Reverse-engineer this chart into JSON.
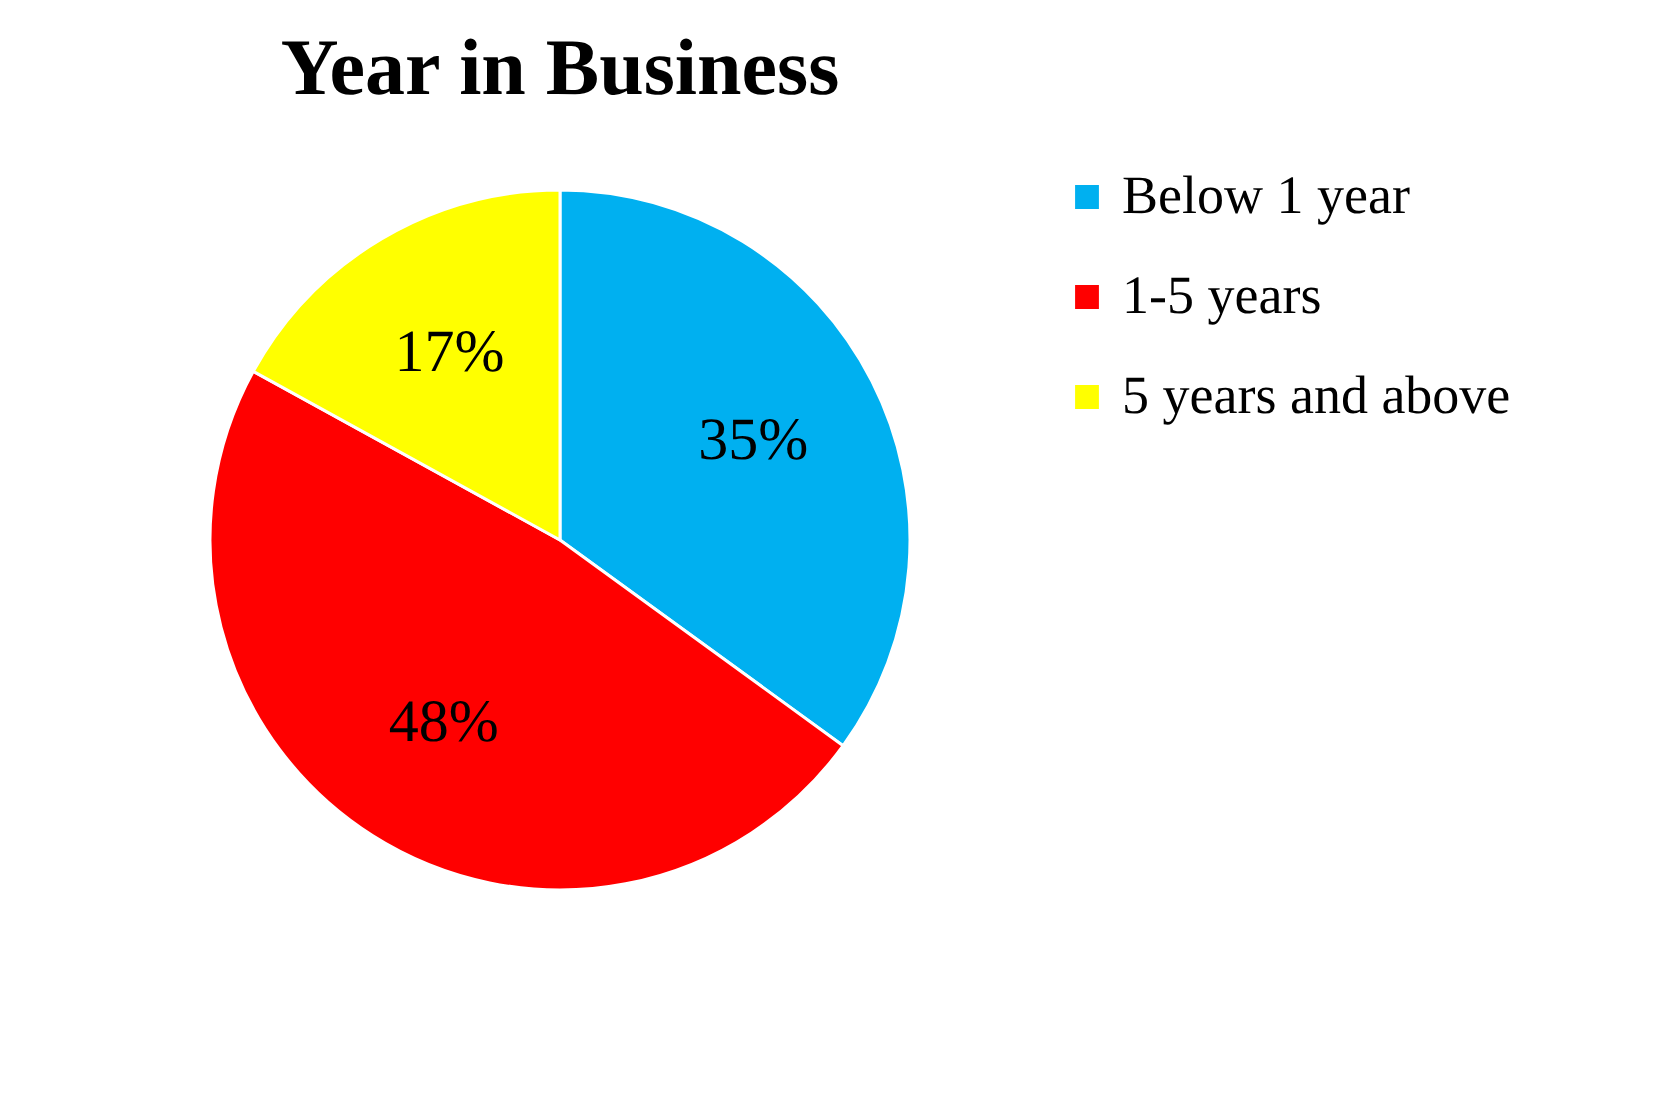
{
  "chart_data": {
    "type": "pie",
    "title": "Year in Business",
    "categories": [
      "Below 1 year",
      "1-5 years",
      "5 years and above"
    ],
    "values": [
      35,
      48,
      17
    ],
    "colors": [
      "#00b0f0",
      "#ff0000",
      "#ffff00"
    ],
    "value_labels": [
      "35%",
      "48%",
      "17%"
    ],
    "legend": "right"
  }
}
